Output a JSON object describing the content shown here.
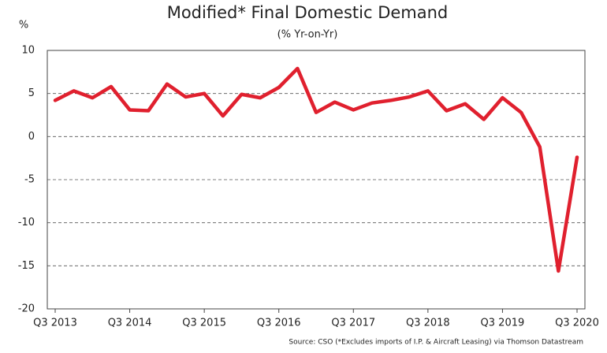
{
  "chart_data": {
    "type": "line",
    "title": "Modified* Final Domestic Demand",
    "subtitle": "(% Yr-on-Yr)",
    "y_label": "%",
    "source": "Source: CSO (*Excludes imports of I.P. & Aircraft Leasing) via Thomson Datastream",
    "categories": [
      "Q3 2013",
      null,
      null,
      null,
      "Q3 2014",
      null,
      null,
      null,
      "Q3 2015",
      null,
      null,
      null,
      "Q3 2016",
      null,
      null,
      null,
      "Q3 2017",
      null,
      null,
      null,
      "Q3 2018",
      null,
      null,
      null,
      "Q3 2019",
      null,
      null,
      null,
      "Q3 2020"
    ],
    "series": [
      {
        "name": "Modified Final Domestic Demand",
        "color": "#e0202e",
        "values": [
          4.2,
          5.3,
          4.5,
          5.8,
          3.1,
          3.0,
          6.1,
          4.6,
          5.0,
          2.4,
          4.9,
          4.5,
          5.7,
          7.9,
          2.8,
          4.0,
          3.1,
          3.9,
          4.2,
          4.6,
          5.3,
          3.0,
          3.8,
          2.0,
          4.5,
          2.8,
          -1.2,
          -15.6,
          -2.4
        ]
      }
    ],
    "ylim": [
      -20,
      10
    ],
    "yticks": [
      10,
      5,
      0,
      -5,
      -10,
      -15,
      -20
    ],
    "grid": true
  }
}
